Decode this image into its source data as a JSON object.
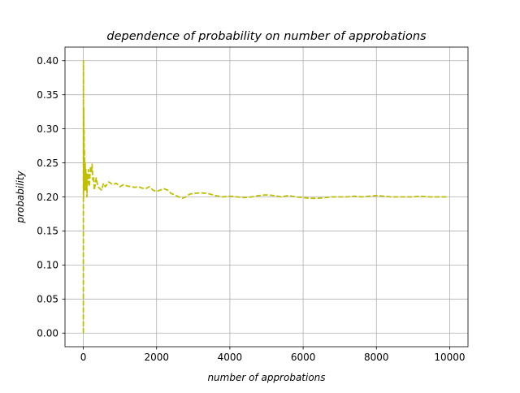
{
  "chart_data": {
    "type": "line",
    "title": "dependence of probability on number of approbations",
    "xlabel": "number of approbations",
    "ylabel": "probability",
    "xlim": [
      -500,
      10500
    ],
    "ylim": [
      -0.02,
      0.42
    ],
    "xticks": [
      0,
      2000,
      4000,
      6000,
      8000,
      10000
    ],
    "xtick_labels": [
      "0",
      "2000",
      "4000",
      "6000",
      "8000",
      "10000"
    ],
    "yticks": [
      0.0,
      0.05,
      0.1,
      0.15,
      0.2,
      0.25,
      0.3,
      0.35,
      0.4
    ],
    "ytick_labels": [
      "0.00",
      "0.05",
      "0.10",
      "0.15",
      "0.20",
      "0.25",
      "0.30",
      "0.35",
      "0.40"
    ],
    "grid": true,
    "legend": "none",
    "series": [
      {
        "color": "#bfbf00",
        "line_style": "dashed",
        "x": [
          1,
          3,
          6,
          10,
          15,
          20,
          25,
          30,
          40,
          50,
          60,
          70,
          80,
          90,
          100,
          110,
          120,
          140,
          160,
          180,
          200,
          220,
          240,
          260,
          280,
          300,
          350,
          400,
          450,
          500,
          550,
          600,
          700,
          800,
          900,
          1000,
          1100,
          1200,
          1300,
          1400,
          1500,
          1600,
          1700,
          1800,
          1900,
          2000,
          2100,
          2200,
          2300,
          2400,
          2500,
          2600,
          2700,
          2800,
          2900,
          3000,
          3200,
          3400,
          3600,
          3800,
          4000,
          4200,
          4400,
          4600,
          4800,
          5000,
          5200,
          5400,
          5600,
          5800,
          6000,
          6200,
          6400,
          6600,
          6800,
          7000,
          7200,
          7400,
          7600,
          7800,
          8000,
          8200,
          8400,
          8600,
          8800,
          9000,
          9200,
          9400,
          9600,
          9800,
          9950
        ],
        "y": [
          0.0,
          0.4,
          0.2,
          0.33,
          0.27,
          0.3,
          0.24,
          0.27,
          0.21,
          0.25,
          0.22,
          0.24,
          0.21,
          0.23,
          0.2,
          0.235,
          0.22,
          0.24,
          0.215,
          0.23,
          0.245,
          0.235,
          0.248,
          0.225,
          0.23,
          0.21,
          0.228,
          0.215,
          0.212,
          0.21,
          0.22,
          0.215,
          0.222,
          0.218,
          0.22,
          0.215,
          0.218,
          0.216,
          0.215,
          0.214,
          0.215,
          0.213,
          0.212,
          0.215,
          0.21,
          0.208,
          0.21,
          0.212,
          0.21,
          0.205,
          0.203,
          0.2,
          0.198,
          0.2,
          0.204,
          0.205,
          0.206,
          0.205,
          0.202,
          0.2,
          0.201,
          0.2,
          0.199,
          0.2,
          0.202,
          0.203,
          0.202,
          0.2,
          0.202,
          0.2,
          0.199,
          0.198,
          0.198,
          0.199,
          0.2,
          0.2,
          0.2,
          0.201,
          0.2,
          0.201,
          0.202,
          0.201,
          0.2,
          0.2,
          0.2,
          0.2,
          0.201,
          0.2,
          0.2,
          0.2,
          0.2
        ]
      }
    ]
  }
}
